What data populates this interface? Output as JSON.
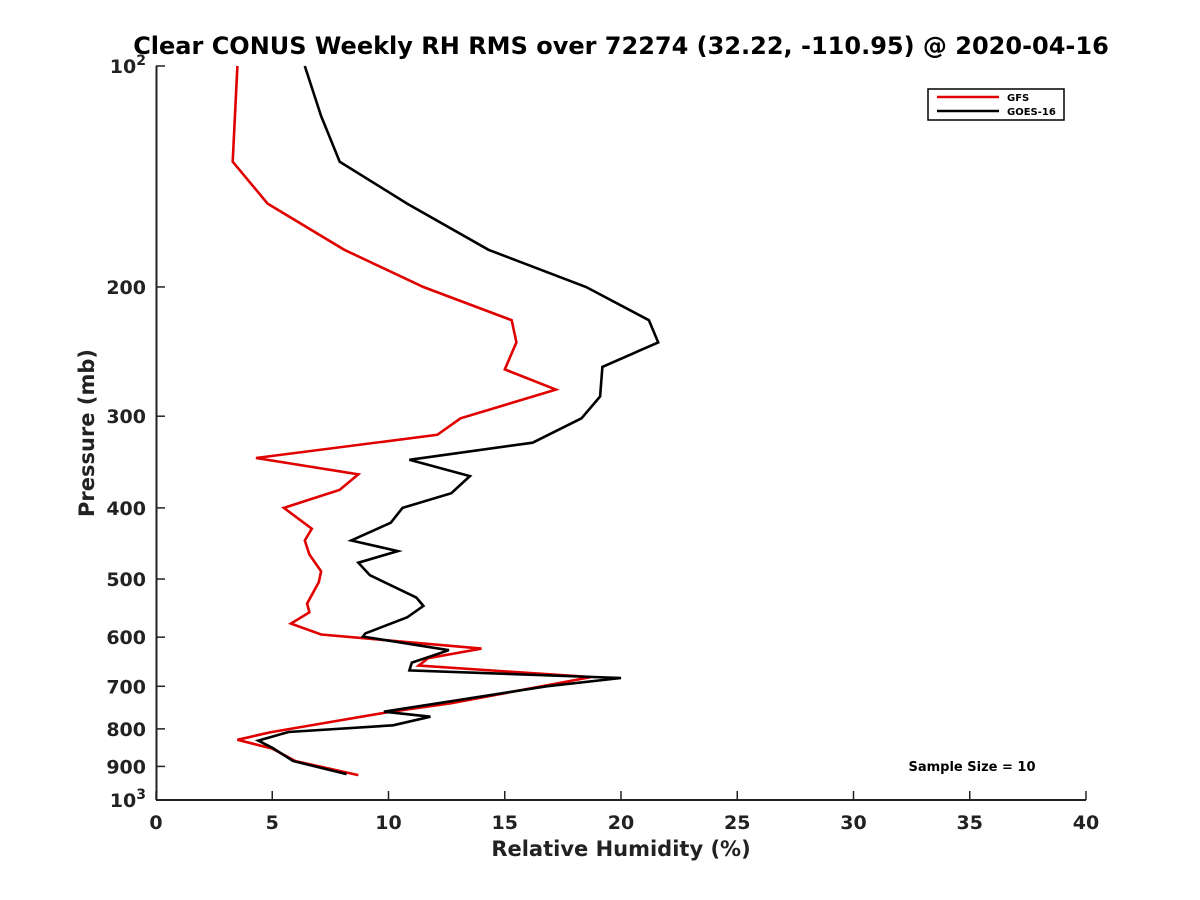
{
  "chart_data": {
    "type": "line",
    "title": "Clear CONUS Weekly RH RMS over 72274 (32.22, -110.95) @ 2020-04-16",
    "xlabel": "Relative Humidity (%)",
    "ylabel": "Pressure (mb)",
    "xlim": [
      0,
      40
    ],
    "ylim": [
      100,
      1000
    ],
    "y_scale": "log",
    "y_reversed": true,
    "x_ticks": [
      0,
      5,
      10,
      15,
      20,
      25,
      30,
      35,
      40
    ],
    "y_ticks": [
      100,
      200,
      300,
      400,
      500,
      600,
      700,
      800,
      900,
      1000
    ],
    "y_tick_labels": [
      {
        "base": "10",
        "exp": "2"
      },
      {
        "base": "200",
        "exp": ""
      },
      {
        "base": "300",
        "exp": ""
      },
      {
        "base": "400",
        "exp": ""
      },
      {
        "base": "500",
        "exp": ""
      },
      {
        "base": "600",
        "exp": ""
      },
      {
        "base": "700",
        "exp": ""
      },
      {
        "base": "800",
        "exp": ""
      },
      {
        "base": "900",
        "exp": ""
      },
      {
        "base": "10",
        "exp": "3"
      }
    ],
    "grid": false,
    "legend_position": "top-right",
    "annotation": "Sample Size = 10",
    "series": [
      {
        "name": "GFS",
        "color": "#e00000",
        "points": [
          [
            3.5,
            100
          ],
          [
            3.3,
            135
          ],
          [
            4.8,
            154
          ],
          [
            8.1,
            178
          ],
          [
            11.5,
            200
          ],
          [
            15.3,
            222
          ],
          [
            15.5,
            238
          ],
          [
            15.0,
            259
          ],
          [
            17.2,
            276
          ],
          [
            13.1,
            302
          ],
          [
            12.1,
            318
          ],
          [
            4.3,
            342
          ],
          [
            8.7,
            360
          ],
          [
            7.9,
            378
          ],
          [
            5.5,
            400
          ],
          [
            6.7,
            427
          ],
          [
            6.4,
            443
          ],
          [
            6.6,
            463
          ],
          [
            7.1,
            488
          ],
          [
            7.0,
            505
          ],
          [
            6.5,
            540
          ],
          [
            6.6,
            555
          ],
          [
            5.8,
            575
          ],
          [
            7.1,
            595
          ],
          [
            14.0,
            622
          ],
          [
            11.7,
            641
          ],
          [
            11.3,
            656
          ],
          [
            18.7,
            680
          ],
          [
            12.7,
            738
          ],
          [
            9.9,
            760
          ],
          [
            4.9,
            809
          ],
          [
            3.5,
            828
          ],
          [
            5.0,
            851
          ],
          [
            6.0,
            885
          ],
          [
            8.7,
            925
          ]
        ]
      },
      {
        "name": "GOES-16",
        "color": "#000000",
        "points": [
          [
            6.4,
            100
          ],
          [
            7.1,
            117
          ],
          [
            7.9,
            135
          ],
          [
            10.8,
            154
          ],
          [
            14.3,
            178
          ],
          [
            18.5,
            200
          ],
          [
            21.2,
            222
          ],
          [
            21.6,
            238
          ],
          [
            19.2,
            257
          ],
          [
            19.1,
            282
          ],
          [
            18.3,
            302
          ],
          [
            16.2,
            326
          ],
          [
            10.9,
            344
          ],
          [
            13.5,
            362
          ],
          [
            12.7,
            382
          ],
          [
            10.6,
            400
          ],
          [
            10.1,
            419
          ],
          [
            8.4,
            443
          ],
          [
            10.4,
            458
          ],
          [
            8.7,
            475
          ],
          [
            9.2,
            494
          ],
          [
            11.2,
            530
          ],
          [
            11.5,
            544
          ],
          [
            10.8,
            564
          ],
          [
            9.0,
            593
          ],
          [
            8.9,
            599
          ],
          [
            12.6,
            625
          ],
          [
            11.0,
            650
          ],
          [
            10.9,
            666
          ],
          [
            20.0,
            682
          ],
          [
            16.8,
            700
          ],
          [
            9.8,
            758
          ],
          [
            11.8,
            770
          ],
          [
            10.2,
            791
          ],
          [
            5.7,
            808
          ],
          [
            4.4,
            830
          ],
          [
            5.0,
            849
          ],
          [
            5.9,
            885
          ],
          [
            8.2,
            922
          ]
        ]
      }
    ]
  },
  "legend": {
    "items": [
      {
        "label": "GFS",
        "color": "#e00000"
      },
      {
        "label": "GOES-16",
        "color": "#000000"
      }
    ]
  }
}
